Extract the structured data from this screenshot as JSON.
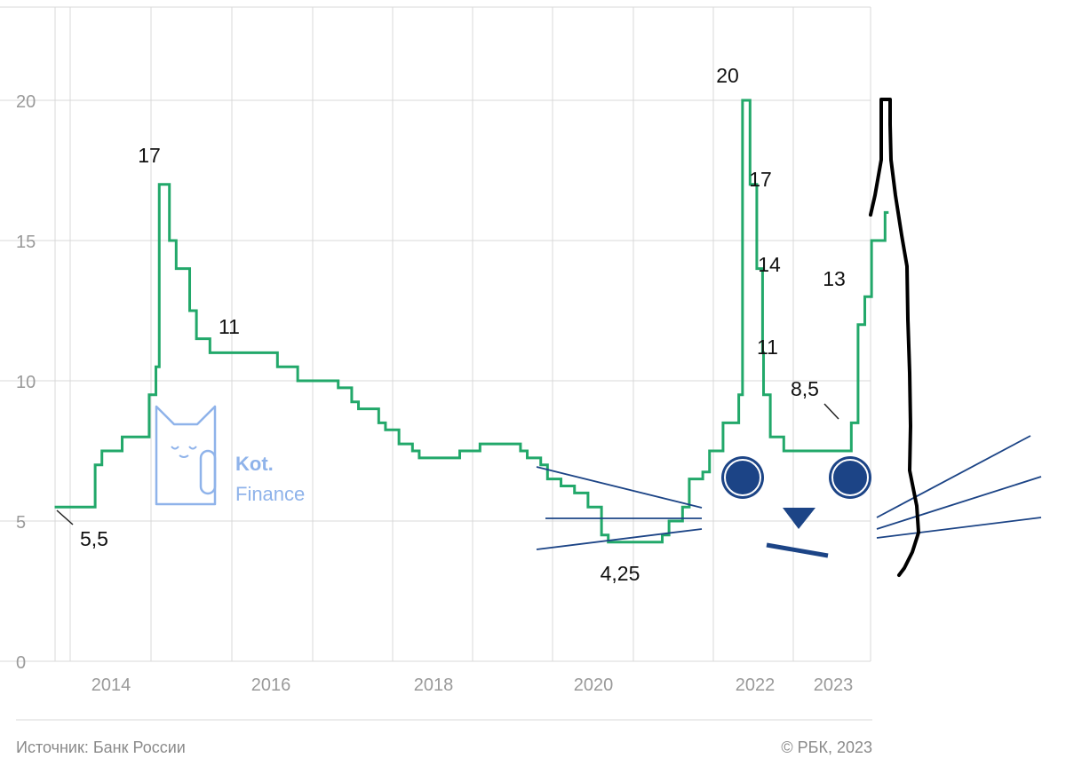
{
  "chart_data": {
    "type": "line",
    "step": true,
    "title": "",
    "xlabel": "",
    "ylabel": "",
    "ylim": [
      0,
      20
    ],
    "yticks": [
      "0",
      "5",
      "10",
      "15",
      "20"
    ],
    "xticks": [
      "2014",
      "2016",
      "2018",
      "2020",
      "2022",
      "2023"
    ],
    "grid": true,
    "series": [
      {
        "color": "#22a86a",
        "points": [
          [
            "2013-09",
            5.5
          ],
          [
            "2014-03",
            7.0
          ],
          [
            "2014-04",
            7.5
          ],
          [
            "2014-07",
            8.0
          ],
          [
            "2014-11",
            9.5
          ],
          [
            "2014-12",
            10.5
          ],
          [
            "2014-12-16",
            17.0
          ],
          [
            "2015-02",
            15.0
          ],
          [
            "2015-03",
            14.0
          ],
          [
            "2015-05",
            12.5
          ],
          [
            "2015-06",
            11.5
          ],
          [
            "2015-08",
            11.0
          ],
          [
            "2016-06",
            10.5
          ],
          [
            "2016-09",
            10.0
          ],
          [
            "2017-03",
            9.75
          ],
          [
            "2017-05",
            9.25
          ],
          [
            "2017-06",
            9.0
          ],
          [
            "2017-09",
            8.5
          ],
          [
            "2017-10",
            8.25
          ],
          [
            "2017-12",
            7.75
          ],
          [
            "2018-02",
            7.5
          ],
          [
            "2018-03",
            7.25
          ],
          [
            "2018-09",
            7.5
          ],
          [
            "2018-12",
            7.75
          ],
          [
            "2019-06",
            7.5
          ],
          [
            "2019-07",
            7.25
          ],
          [
            "2019-09",
            7.0
          ],
          [
            "2019-10",
            6.5
          ],
          [
            "2019-12",
            6.25
          ],
          [
            "2020-02",
            6.0
          ],
          [
            "2020-04",
            5.5
          ],
          [
            "2020-06",
            4.5
          ],
          [
            "2020-07",
            4.25
          ],
          [
            "2021-03",
            4.5
          ],
          [
            "2021-04",
            5.0
          ],
          [
            "2021-06",
            5.5
          ],
          [
            "2021-07",
            6.5
          ],
          [
            "2021-09",
            6.75
          ],
          [
            "2021-10",
            7.5
          ],
          [
            "2021-12",
            8.5
          ],
          [
            "2022-02-11",
            9.5
          ],
          [
            "2022-02-28",
            20.0
          ],
          [
            "2022-04",
            17.0
          ],
          [
            "2022-05",
            14.0
          ],
          [
            "2022-05-27",
            11.0
          ],
          [
            "2022-06",
            9.5
          ],
          [
            "2022-07",
            8.0
          ],
          [
            "2022-09",
            7.5
          ],
          [
            "2023-07",
            8.5
          ],
          [
            "2023-08",
            12.0
          ],
          [
            "2023-09",
            13.0
          ],
          [
            "2023-10",
            15.0
          ],
          [
            "2023-12",
            16.0
          ]
        ]
      }
    ],
    "annotations": [
      {
        "text": "5,5",
        "value": 5.5
      },
      {
        "text": "17",
        "value": 17
      },
      {
        "text": "11",
        "value": 11
      },
      {
        "text": "4,25",
        "value": 4.25
      },
      {
        "text": "20",
        "value": 20
      },
      {
        "text": "17",
        "value": 17
      },
      {
        "text": "14",
        "value": 14
      },
      {
        "text": "11",
        "value": 11
      },
      {
        "text": "8,5",
        "value": 8.5
      },
      {
        "text": "13",
        "value": 13
      }
    ]
  },
  "watermark": {
    "brand": "Kot.",
    "sub": "Finance",
    "color": "#8fb3ea"
  },
  "footer": {
    "source": "Источник: Банк России",
    "copyright": "© РБК, 2023"
  },
  "colors": {
    "line": "#22a86a",
    "grid": "#d9d9d9",
    "axis_text": "#9a9a9a",
    "doodle_blue": "#1c4486",
    "doodle_black": "#000000"
  }
}
